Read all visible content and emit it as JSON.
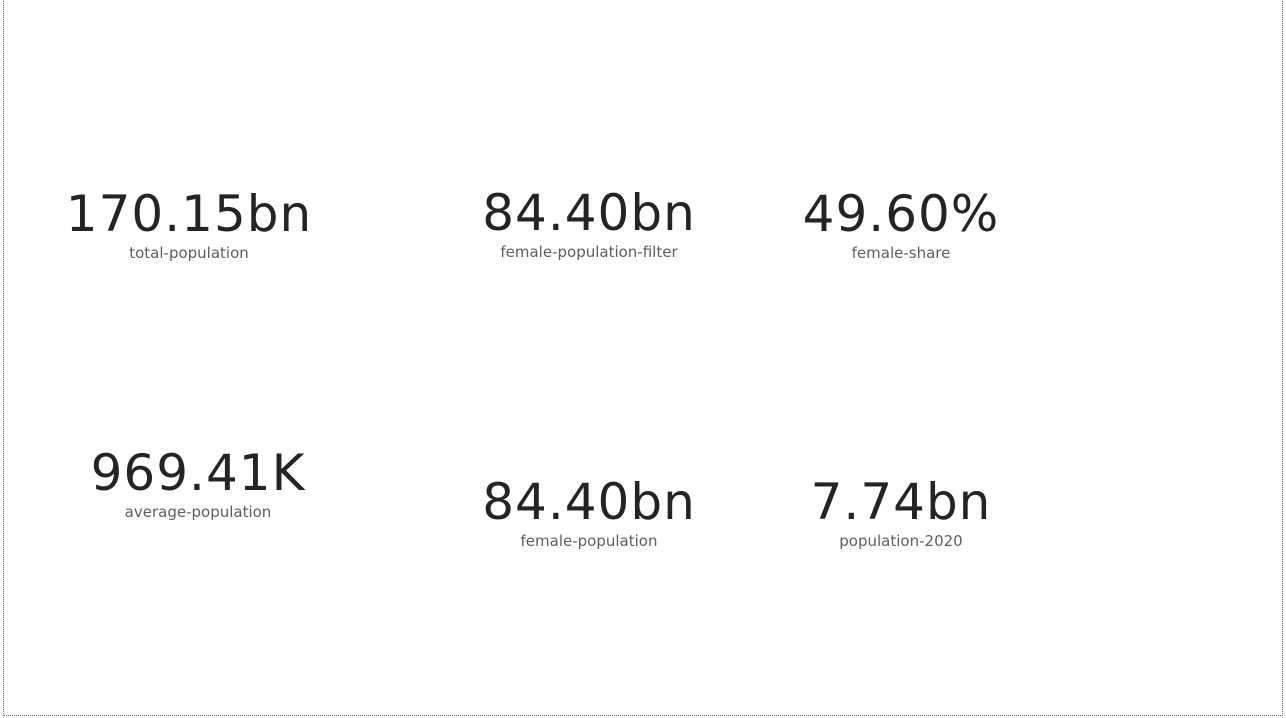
{
  "cards": [
    {
      "value": "170.15bn",
      "label": "total-population"
    },
    {
      "value": "84.40bn",
      "label": "female-population-filter"
    },
    {
      "value": "49.60%",
      "label": "female-share"
    },
    {
      "value": "969.41K",
      "label": "average-population"
    },
    {
      "value": "84.40bn",
      "label": "female-population"
    },
    {
      "value": "7.74bn",
      "label": "population-2020"
    }
  ],
  "colors": {
    "value_text": "#252423",
    "label_text": "#605e5c",
    "canvas_border": "#6b6b6b",
    "background": "#ffffff"
  }
}
